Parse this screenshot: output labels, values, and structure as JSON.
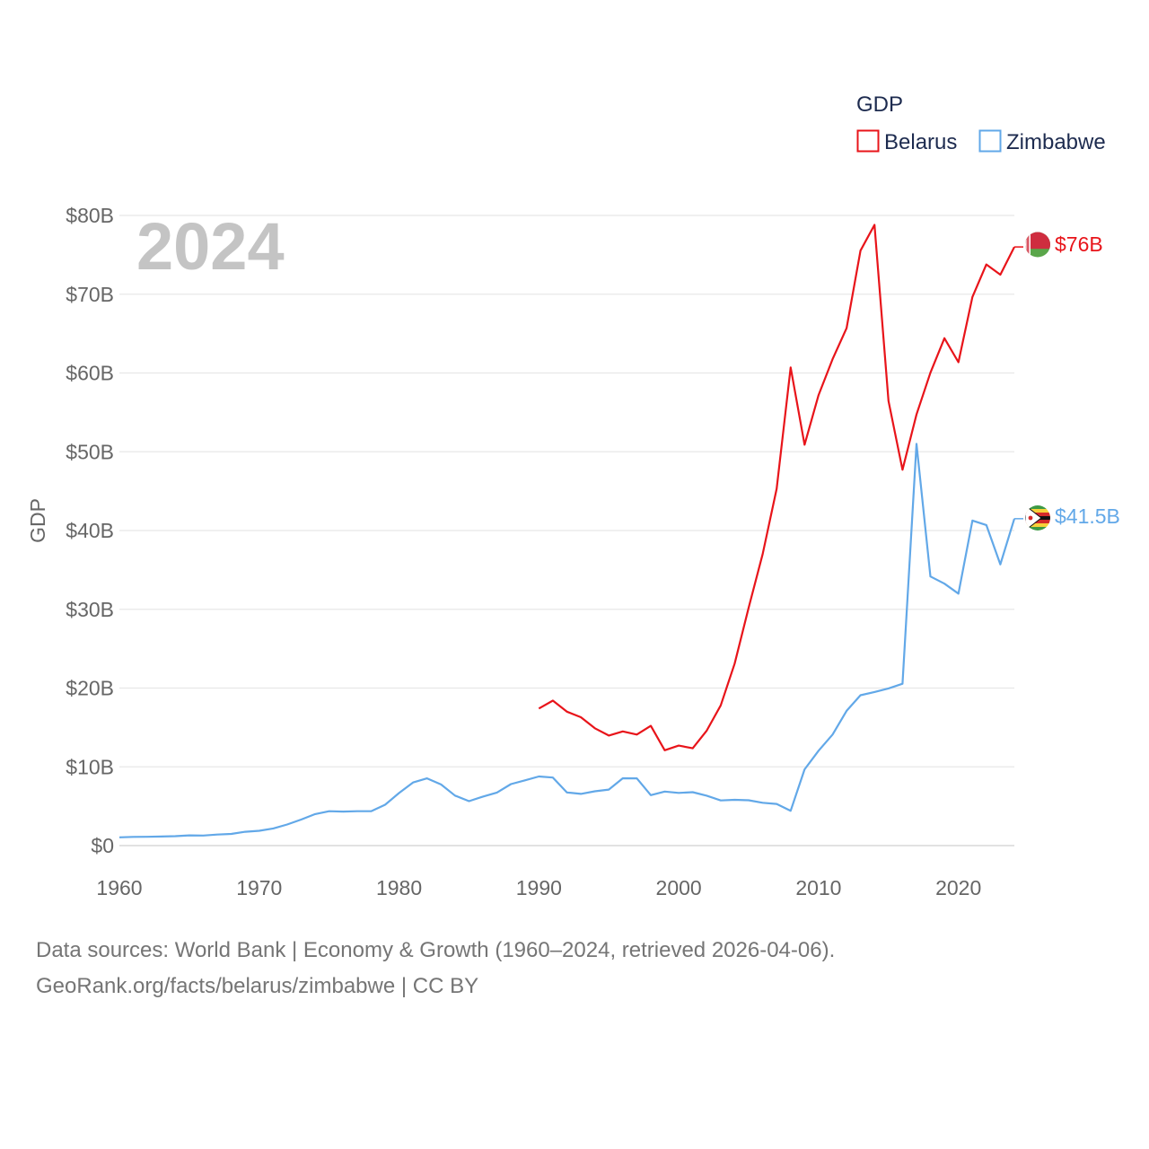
{
  "chart_data": {
    "type": "line",
    "title": "GDP",
    "ylabel": "GDP",
    "xlabel": "",
    "current_year": "2024",
    "xlim": [
      1960,
      2024
    ],
    "ylim": [
      0,
      80
    ],
    "y_unit": "billion USD",
    "y_ticks": [
      0,
      10,
      20,
      30,
      40,
      50,
      60,
      70,
      80
    ],
    "y_tick_labels": [
      "$0",
      "$10B",
      "$20B",
      "$30B",
      "$40B",
      "$50B",
      "$60B",
      "$70B",
      "$80B"
    ],
    "x_ticks": [
      1960,
      1970,
      1980,
      1990,
      2000,
      2010,
      2020
    ],
    "x_tick_labels": [
      "1960",
      "1970",
      "1980",
      "1990",
      "2000",
      "2010",
      "2020"
    ],
    "grid": true,
    "legend_position": "top-right",
    "series": [
      {
        "name": "Belarus",
        "color": "#e8141a",
        "flag": "belarus-flag",
        "end_label": "$76B",
        "x": [
          1990,
          1991,
          1992,
          1993,
          1994,
          1995,
          1996,
          1997,
          1998,
          1999,
          2000,
          2001,
          2002,
          2003,
          2004,
          2005,
          2006,
          2007,
          2008,
          2009,
          2010,
          2011,
          2012,
          2013,
          2014,
          2015,
          2016,
          2017,
          2018,
          2019,
          2020,
          2021,
          2022,
          2023,
          2024
        ],
        "values": [
          17.4,
          18.4,
          17.0,
          16.3,
          14.9,
          13.97,
          14.5,
          14.1,
          15.2,
          12.1,
          12.7,
          12.35,
          14.6,
          17.8,
          23.1,
          30.2,
          37.0,
          45.3,
          60.7,
          50.9,
          57.2,
          61.76,
          65.69,
          75.53,
          78.8,
          56.45,
          47.72,
          54.73,
          60.03,
          64.41,
          61.37,
          69.65,
          73.78,
          72.48,
          76.0
        ]
      },
      {
        "name": "Zimbabwe",
        "color": "#62a8e8",
        "flag": "zimbabwe-flag",
        "end_label": "$41.5B",
        "x": [
          1960,
          1961,
          1962,
          1963,
          1964,
          1965,
          1966,
          1967,
          1968,
          1969,
          1970,
          1971,
          1972,
          1973,
          1974,
          1975,
          1976,
          1977,
          1978,
          1979,
          1980,
          1981,
          1982,
          1983,
          1984,
          1985,
          1986,
          1987,
          1988,
          1989,
          1990,
          1991,
          1992,
          1993,
          1994,
          1995,
          1996,
          1997,
          1998,
          1999,
          2000,
          2001,
          2002,
          2003,
          2004,
          2005,
          2006,
          2007,
          2008,
          2009,
          2010,
          2011,
          2012,
          2013,
          2014,
          2015,
          2016,
          2017,
          2018,
          2019,
          2020,
          2021,
          2022,
          2023,
          2024
        ],
        "values": [
          1.05,
          1.1,
          1.12,
          1.15,
          1.2,
          1.3,
          1.28,
          1.4,
          1.48,
          1.75,
          1.88,
          2.18,
          2.68,
          3.3,
          4.0,
          4.37,
          4.32,
          4.36,
          4.36,
          5.18,
          6.68,
          8.01,
          8.54,
          7.76,
          6.35,
          5.64,
          6.22,
          6.74,
          7.81,
          8.29,
          8.78,
          8.64,
          6.75,
          6.56,
          6.89,
          7.11,
          8.55,
          8.53,
          6.4,
          6.86,
          6.69,
          6.78,
          6.34,
          5.73,
          5.81,
          5.76,
          5.44,
          5.29,
          4.42,
          9.67,
          12.04,
          14.1,
          17.11,
          19.09,
          19.5,
          19.96,
          20.55,
          51.0,
          34.16,
          33.25,
          31.99,
          41.26,
          40.7,
          35.7,
          41.5
        ]
      }
    ]
  },
  "footer": {
    "line1": "Data sources: World Bank | Economy & Growth (1960–2024, retrieved 2026-04-06).",
    "line2": "GeoRank.org/facts/belarus/zimbabwe | CC BY"
  }
}
